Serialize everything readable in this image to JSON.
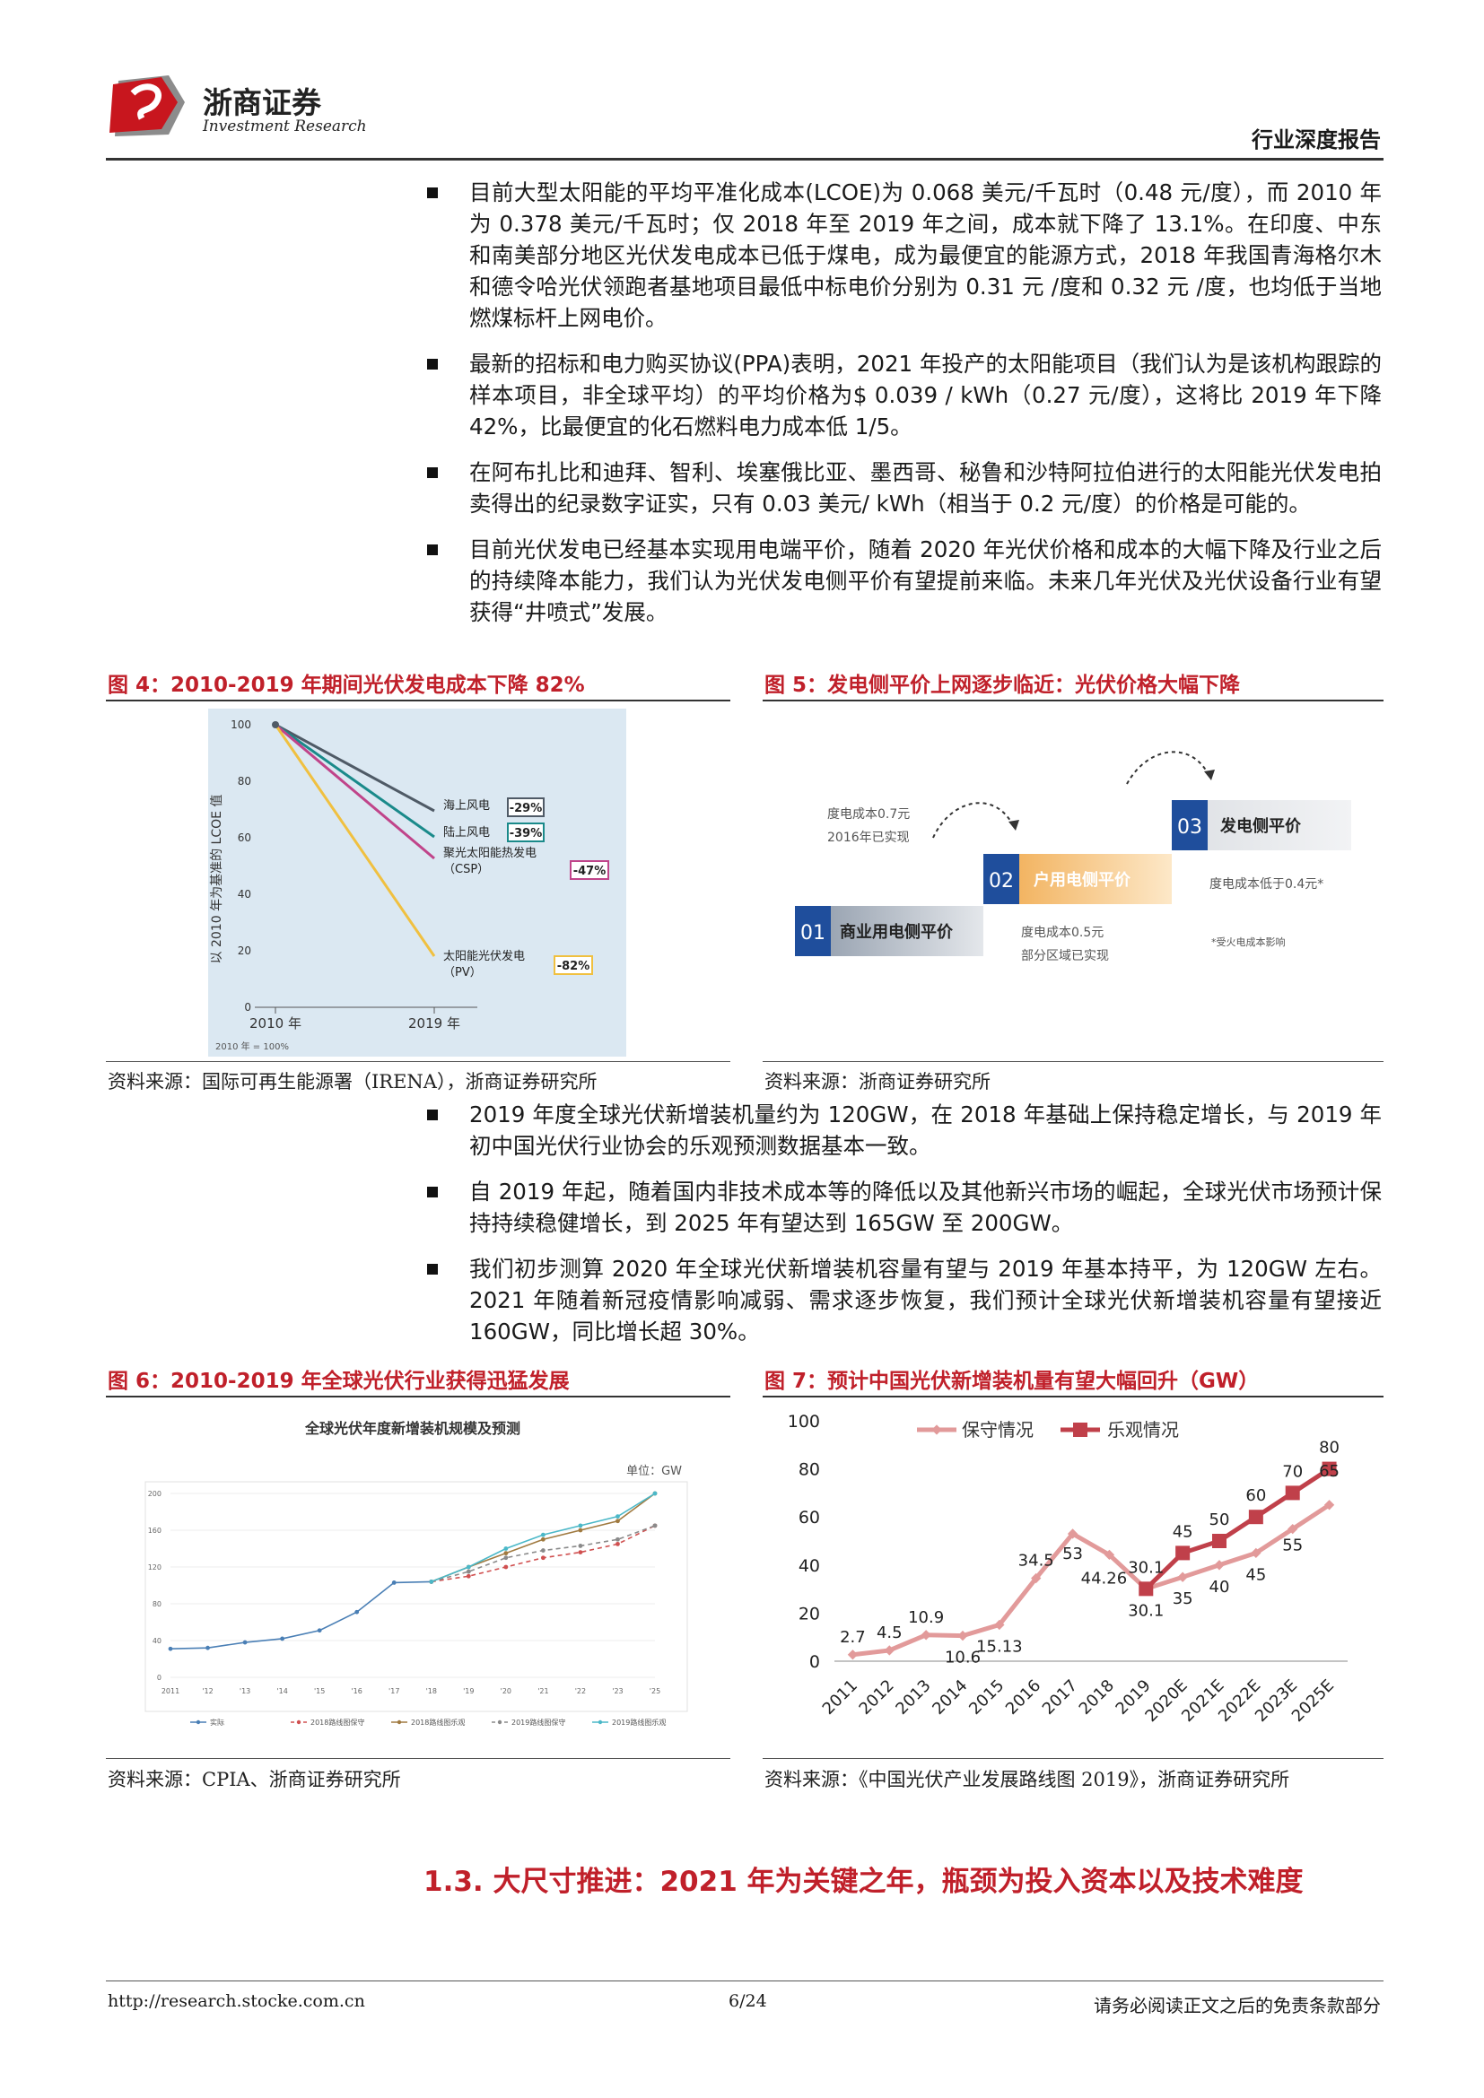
{
  "header": {
    "logo_cn": "浙商证券",
    "logo_en": "Investment Research",
    "report_type": "行业深度报告"
  },
  "bullets_top": [
    "目前大型太阳能的平均平准化成本(LCOE)为 0.068 美元/千瓦时（0.48 元/度），而 2010 年为 0.378 美元/千瓦时；仅 2018 年至 2019 年之间，成本就下降了 13.1%。在印度、中东和南美部分地区光伏发电成本已低于煤电，成为最便宜的能源方式，2018 年我国青海格尔木和德令哈光伏领跑者基地项目最低中标电价分别为 0.31 元 /度和 0.32 元 /度，也均低于当地燃煤标杆上网电价。",
    "最新的招标和电力购买协议(PPA)表明，2021 年投产的太阳能项目（我们认为是该机构跟踪的样本项目，非全球平均）的平均价格为$ 0.039 / kWh（0.27 元/度），这将比 2019 年下降 42%，比最便宜的化石燃料电力成本低 1/5。",
    "在阿布扎比和迪拜、智利、埃塞俄比亚、墨西哥、秘鲁和沙特阿拉伯进行的太阳能光伏发电拍卖得出的纪录数字证实，只有 0.03 美元/ kWh（相当于 0.2 元/度）的价格是可能的。",
    "目前光伏发电已经基本实现用电端平价，随着 2020 年光伏价格和成本的大幅下降及行业之后的持续降本能力，我们认为光伏发电侧平价有望提前来临。未来几年光伏及光伏设备行业有望获得“井喷式”发展。"
  ],
  "fig4": {
    "title": "图 4：2010-2019 年期间光伏发电成本下降 82%",
    "ylabel": "以 2010 年为基准的 LCOE 值",
    "yticks": [
      "100",
      "80",
      "60",
      "40",
      "20",
      "0"
    ],
    "xticks": [
      "2010 年",
      "2019 年"
    ],
    "footnote": "2010 年 = 100%",
    "lines": [
      {
        "name": "海上风电",
        "pct": "-29%",
        "color": "#4f5a66"
      },
      {
        "name": "陆上风电",
        "pct": "-39%",
        "color": "#1a8a8a"
      },
      {
        "name_l1": "聚光太阳能热发电",
        "name_l2": "（CSP）",
        "pct": "-47%",
        "color": "#c0448a"
      },
      {
        "name_l1": "太阳能光伏发电",
        "name_l2": "（PV）",
        "pct": "-82%",
        "color": "#f0c040"
      }
    ],
    "source": "资料来源：国际可再生能源署（IRENA），浙商证券研究所"
  },
  "fig5": {
    "title": "图 5：发电侧平价上网逐步临近：光伏价格大幅下降",
    "step1_num": "01",
    "step1_label": "商业用电侧平价",
    "step2_num": "02",
    "step2_label": "户用电侧平价",
    "step3_num": "03",
    "step3_label": "发电侧平价",
    "note1_l1": "度电成本0.7元",
    "note1_l2": "2016年已实现",
    "note2_l1": "度电成本0.5元",
    "note2_l2": "部分区域已实现",
    "note3": "度电成本低于0.4元*",
    "note4": "*受火电成本影响",
    "source": "资料来源：浙商证券研究所"
  },
  "bullets_mid": [
    "2019 年度全球光伏新增装机量约为 120GW，在 2018 年基础上保持稳定增长，与 2019 年初中国光伏行业协会的乐观预测数据基本一致。",
    "自 2019 年起，随着国内非技术成本等的降低以及其他新兴市场的崛起，全球光伏市场预计保持持续稳健增长，到 2025 年有望达到 165GW 至 200GW。",
    "我们初步测算 2020 年全球光伏新增装机容量有望与 2019 年基本持平，为 120GW 左右。2021 年随着新冠疫情影响减弱、需求逐步恢复，我们预计全球光伏新增装机容量有望接近 160GW，同比增长超 30%。"
  ],
  "fig6": {
    "title": "图 6：2010-2019 年全球光伏行业获得迅猛发展",
    "chart_title": "全球光伏年度新增装机规模及预测",
    "unit": "单位：GW",
    "yticks": [
      "0",
      "40",
      "80",
      "120",
      "160",
      "200"
    ],
    "xticks": [
      "2011",
      "'12",
      "'13",
      "'14",
      "'15",
      "'16",
      "'17",
      "'18",
      "'19",
      "'20",
      "'21",
      "'22",
      "'23",
      "'25"
    ],
    "legend": [
      "实际",
      "2018路线图保守",
      "2018路线图乐观",
      "2019路线图保守",
      "2019路线图乐观"
    ],
    "source": "资料来源：CPIA、浙商证券研究所"
  },
  "fig7": {
    "title": "图 7：预计中国光伏新增装机量有望大幅回升（GW）",
    "source": "资料来源：《中国光伏产业发展路线图 2019》，浙商证券研究所"
  },
  "chart_data": [
    {
      "type": "line",
      "title": "全球光伏年度新增装机规模及预测",
      "unit": "单位：GW",
      "categories": [
        "2011",
        "'12",
        "'13",
        "'14",
        "'15",
        "'16",
        "'17",
        "'18",
        "'19",
        "'20",
        "'21",
        "'22",
        "'23",
        "'25"
      ],
      "ylim": [
        0,
        200
      ],
      "series": [
        {
          "name": "实际",
          "color": "#4a7fb5",
          "values": [
            31,
            32,
            38,
            42,
            51,
            71,
            103,
            104,
            null,
            null,
            null,
            null,
            null,
            null
          ]
        },
        {
          "name": "2018路线图保守",
          "color": "#d05050",
          "values": [
            null,
            null,
            null,
            null,
            null,
            null,
            null,
            104,
            110,
            120,
            130,
            136,
            145,
            165
          ]
        },
        {
          "name": "2018路线图乐观",
          "color": "#a07a40",
          "values": [
            null,
            null,
            null,
            null,
            null,
            null,
            null,
            104,
            120,
            135,
            150,
            160,
            170,
            200
          ]
        },
        {
          "name": "2019路线图保守",
          "color": "#8a8a8a",
          "values": [
            null,
            null,
            null,
            null,
            null,
            null,
            null,
            104,
            115,
            130,
            138,
            143,
            150,
            165
          ]
        },
        {
          "name": "2019路线图乐观",
          "color": "#4bb8c8",
          "values": [
            null,
            null,
            null,
            null,
            null,
            null,
            null,
            104,
            120,
            140,
            155,
            165,
            175,
            200
          ]
        }
      ]
    },
    {
      "type": "line",
      "categories": [
        "2011",
        "2012",
        "2013",
        "2014",
        "2015",
        "2016",
        "2017",
        "2018",
        "2019",
        "2020E",
        "2021E",
        "2022E",
        "2023E",
        "2025E"
      ],
      "ylim": [
        0,
        100
      ],
      "yticks": [
        0,
        20,
        40,
        60,
        80,
        100
      ],
      "series": [
        {
          "name": "保守情况",
          "color": "#e29a9a",
          "values": [
            2.7,
            4.5,
            10.9,
            10.6,
            15.13,
            34.5,
            53,
            44.26,
            30.1,
            35,
            40,
            45,
            55,
            65
          ],
          "labels": [
            "2.7",
            "4.5",
            "10.9",
            "10.6",
            "15.13",
            "34.5",
            "53",
            "44.26",
            "30.1",
            "35",
            "40",
            "45",
            "55",
            "65"
          ]
        },
        {
          "name": "乐观情况",
          "color": "#c0404a",
          "values": [
            null,
            null,
            null,
            null,
            null,
            null,
            null,
            null,
            30.1,
            45,
            50,
            60,
            70,
            80
          ],
          "labels": [
            "",
            "",
            "",
            "",
            "",
            "",
            "",
            "",
            "30.1",
            "45",
            "50",
            "60",
            "70",
            "80"
          ]
        }
      ]
    }
  ],
  "section": {
    "title": "1.3. 大尺寸推进：2021 年为关键之年，瓶颈为投入资本以及技术难度"
  },
  "footer": {
    "url": "http://research.stocke.com.cn",
    "page": "6/24",
    "disclaimer": "请务必阅读正文之后的免责条款部分"
  }
}
